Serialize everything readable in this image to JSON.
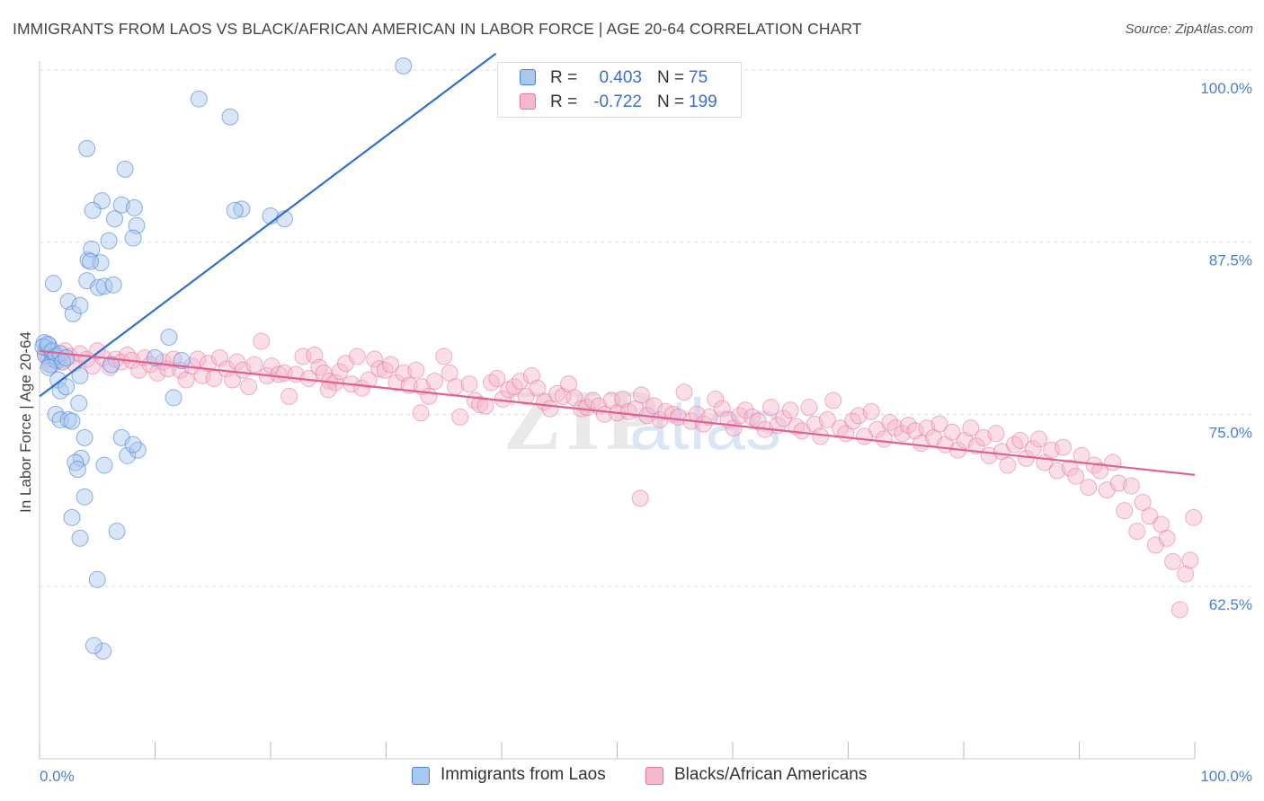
{
  "header": {
    "title": "IMMIGRANTS FROM LAOS VS BLACK/AFRICAN AMERICAN IN LABOR FORCE | AGE 20-64 CORRELATION CHART",
    "source": "Source: ZipAtlas.com"
  },
  "legend_top": {
    "rows": [
      {
        "r_label": "R =",
        "r_value": "0.403",
        "n_label": "N =",
        "n_value": "75"
      },
      {
        "r_label": "R =",
        "r_value": "-0.722",
        "n_label": "N =",
        "n_value": "199"
      }
    ]
  },
  "legend_bottom": {
    "items": [
      {
        "label": "Immigrants from Laos"
      },
      {
        "label": "Blacks/African Americans"
      }
    ]
  },
  "colors": {
    "series_blue": "#4a7fd4",
    "series_blue_fill": "#a9c8f0",
    "series_pink": "#e8739c",
    "series_pink_fill": "#f5b9cf",
    "grid": "#dddddd",
    "axis_text": "#4a7fd4"
  },
  "chart_data": {
    "type": "scatter",
    "title": "IMMIGRANTS FROM LAOS VS BLACK/AFRICAN AMERICAN IN LABOR FORCE | AGE 20-64 CORRELATION CHART",
    "xlabel": "",
    "ylabel": "In Labor Force | Age 20-64",
    "xlim": [
      0,
      100
    ],
    "ylim": [
      50,
      102
    ],
    "x_tick_labels": [
      "0.0%",
      "100.0%"
    ],
    "y_ticks": [
      62.5,
      75.0,
      87.5,
      100.0
    ],
    "y_tick_labels": [
      "62.5%",
      "75.0%",
      "87.5%",
      "100.0%"
    ],
    "grid": true,
    "legend_position": "bottom",
    "series": [
      {
        "name": "Immigrants from Laos",
        "color": "#4a7fd4",
        "R": 0.403,
        "N": 75,
        "trend": {
          "x": [
            0,
            39.5
          ],
          "y": [
            76.3,
            101.2
          ]
        },
        "points": [
          [
            0.4,
            80.2
          ],
          [
            0.6,
            79.8
          ],
          [
            0.8,
            80.0
          ],
          [
            1.0,
            79.5
          ],
          [
            0.5,
            79.3
          ],
          [
            1.2,
            79.0
          ],
          [
            0.9,
            78.6
          ],
          [
            1.5,
            78.9
          ],
          [
            0.3,
            79.9
          ],
          [
            0.7,
            80.1
          ],
          [
            1.1,
            79.6
          ],
          [
            1.4,
            79.2
          ],
          [
            1.8,
            79.4
          ],
          [
            2.0,
            78.8
          ],
          [
            0.8,
            78.4
          ],
          [
            2.3,
            79.1
          ],
          [
            1.6,
            77.5
          ],
          [
            1.8,
            76.7
          ],
          [
            2.3,
            77.0
          ],
          [
            3.5,
            77.8
          ],
          [
            1.4,
            75.0
          ],
          [
            1.8,
            74.6
          ],
          [
            2.5,
            74.6
          ],
          [
            2.8,
            74.5
          ],
          [
            3.4,
            75.8
          ],
          [
            3.9,
            73.3
          ],
          [
            3.6,
            71.8
          ],
          [
            3.1,
            71.5
          ],
          [
            3.3,
            71.0
          ],
          [
            5.6,
            71.3
          ],
          [
            3.9,
            69.0
          ],
          [
            2.8,
            67.5
          ],
          [
            3.5,
            66.0
          ],
          [
            5.0,
            63.0
          ],
          [
            6.7,
            66.5
          ],
          [
            5.5,
            57.8
          ],
          [
            4.7,
            58.2
          ],
          [
            7.6,
            72.0
          ],
          [
            7.1,
            73.3
          ],
          [
            8.5,
            72.4
          ],
          [
            8.1,
            72.8
          ],
          [
            1.2,
            84.5
          ],
          [
            2.5,
            83.2
          ],
          [
            2.9,
            82.3
          ],
          [
            3.5,
            82.9
          ],
          [
            4.1,
            84.7
          ],
          [
            4.2,
            86.2
          ],
          [
            4.5,
            87.0
          ],
          [
            5.3,
            86.0
          ],
          [
            4.4,
            86.1
          ],
          [
            5.1,
            84.2
          ],
          [
            5.6,
            84.3
          ],
          [
            6.4,
            84.4
          ],
          [
            5.4,
            90.5
          ],
          [
            4.6,
            89.8
          ],
          [
            6.0,
            87.6
          ],
          [
            6.5,
            89.2
          ],
          [
            7.1,
            90.2
          ],
          [
            8.2,
            90.0
          ],
          [
            8.4,
            88.7
          ],
          [
            8.1,
            87.8
          ],
          [
            7.4,
            92.8
          ],
          [
            4.1,
            94.3
          ],
          [
            13.8,
            97.9
          ],
          [
            16.5,
            96.6
          ],
          [
            17.5,
            89.9
          ],
          [
            16.9,
            89.8
          ],
          [
            20.0,
            89.4
          ],
          [
            21.2,
            89.2
          ],
          [
            31.5,
            100.3
          ],
          [
            10.0,
            79.1
          ],
          [
            11.2,
            80.6
          ],
          [
            11.6,
            76.2
          ],
          [
            6.2,
            78.6
          ],
          [
            12.3,
            78.9
          ]
        ]
      },
      {
        "name": "Blacks/African Americans",
        "color": "#e8739c",
        "R": -0.722,
        "N": 199,
        "trend": {
          "x": [
            0,
            100
          ],
          "y": [
            79.6,
            70.6
          ]
        },
        "points": [
          [
            0.5,
            79.5
          ],
          [
            0.8,
            79.0
          ],
          [
            1.1,
            78.6
          ],
          [
            1.5,
            79.3
          ],
          [
            1.9,
            78.9
          ],
          [
            2.2,
            79.6
          ],
          [
            2.6,
            79.2
          ],
          [
            3.0,
            78.7
          ],
          [
            3.5,
            79.4
          ],
          [
            4.1,
            79.0
          ],
          [
            4.6,
            78.5
          ],
          [
            5.0,
            79.6
          ],
          [
            5.5,
            79.1
          ],
          [
            6.1,
            78.4
          ],
          [
            6.6,
            79.0
          ],
          [
            7.1,
            78.8
          ],
          [
            7.6,
            79.3
          ],
          [
            8.0,
            78.9
          ],
          [
            8.6,
            78.2
          ],
          [
            9.1,
            79.1
          ],
          [
            9.6,
            78.6
          ],
          [
            10.2,
            78.0
          ],
          [
            10.7,
            78.8
          ],
          [
            11.1,
            78.3
          ],
          [
            11.6,
            79.0
          ],
          [
            12.2,
            78.2
          ],
          [
            12.7,
            77.5
          ],
          [
            13.2,
            78.5
          ],
          [
            13.7,
            79.0
          ],
          [
            14.1,
            77.8
          ],
          [
            14.6,
            78.7
          ],
          [
            15.1,
            77.6
          ],
          [
            15.6,
            79.1
          ],
          [
            16.2,
            78.3
          ],
          [
            16.7,
            77.5
          ],
          [
            17.1,
            78.8
          ],
          [
            17.6,
            78.2
          ],
          [
            18.1,
            77.0
          ],
          [
            18.6,
            78.6
          ],
          [
            19.2,
            80.3
          ],
          [
            19.7,
            77.8
          ],
          [
            20.1,
            78.5
          ],
          [
            20.7,
            77.9
          ],
          [
            21.2,
            78.0
          ],
          [
            21.6,
            76.3
          ],
          [
            22.2,
            77.9
          ],
          [
            22.8,
            79.2
          ],
          [
            23.3,
            77.6
          ],
          [
            23.8,
            79.3
          ],
          [
            24.2,
            78.4
          ],
          [
            24.6,
            78.0
          ],
          [
            25.1,
            77.4
          ],
          [
            25.6,
            77.3
          ],
          [
            26.0,
            78.1
          ],
          [
            26.5,
            78.7
          ],
          [
            27.0,
            77.2
          ],
          [
            27.5,
            79.2
          ],
          [
            27.9,
            76.9
          ],
          [
            28.5,
            77.5
          ],
          [
            29.0,
            79.0
          ],
          [
            29.4,
            78.3
          ],
          [
            29.9,
            78.2
          ],
          [
            30.4,
            78.6
          ],
          [
            30.9,
            77.3
          ],
          [
            31.5,
            78.0
          ],
          [
            32.0,
            77.1
          ],
          [
            32.6,
            78.2
          ],
          [
            33.1,
            77.0
          ],
          [
            33.7,
            76.3
          ],
          [
            34.2,
            77.4
          ],
          [
            35.0,
            79.2
          ],
          [
            35.5,
            78.0
          ],
          [
            36.0,
            77.0
          ],
          [
            36.4,
            74.8
          ],
          [
            37.2,
            77.2
          ],
          [
            37.7,
            76.0
          ],
          [
            38.1,
            75.7
          ],
          [
            38.6,
            75.6
          ],
          [
            39.1,
            77.3
          ],
          [
            39.6,
            77.6
          ],
          [
            40.1,
            76.1
          ],
          [
            40.6,
            76.8
          ],
          [
            41.1,
            77.0
          ],
          [
            41.6,
            77.4
          ],
          [
            42.1,
            76.3
          ],
          [
            42.6,
            77.8
          ],
          [
            43.1,
            76.9
          ],
          [
            43.7,
            75.9
          ],
          [
            44.2,
            75.4
          ],
          [
            44.8,
            76.5
          ],
          [
            45.3,
            76.3
          ],
          [
            45.8,
            77.2
          ],
          [
            46.3,
            76.2
          ],
          [
            46.9,
            75.4
          ],
          [
            47.4,
            75.5
          ],
          [
            47.9,
            76.0
          ],
          [
            48.4,
            75.6
          ],
          [
            48.9,
            75.0
          ],
          [
            49.5,
            76.0
          ],
          [
            50.0,
            75.1
          ],
          [
            50.5,
            76.1
          ],
          [
            51.0,
            75.2
          ],
          [
            51.6,
            75.4
          ],
          [
            52.1,
            76.4
          ],
          [
            52.6,
            74.9
          ],
          [
            53.2,
            75.6
          ],
          [
            53.7,
            74.6
          ],
          [
            54.2,
            75.2
          ],
          [
            54.8,
            75.0
          ],
          [
            55.3,
            74.8
          ],
          [
            55.8,
            76.6
          ],
          [
            56.4,
            74.5
          ],
          [
            56.9,
            75.0
          ],
          [
            57.5,
            74.3
          ],
          [
            58.0,
            74.8
          ],
          [
            58.5,
            76.1
          ],
          [
            59.1,
            75.4
          ],
          [
            59.6,
            74.6
          ],
          [
            60.1,
            74.0
          ],
          [
            60.6,
            74.9
          ],
          [
            61.1,
            75.3
          ],
          [
            61.7,
            74.8
          ],
          [
            62.2,
            74.5
          ],
          [
            62.8,
            73.9
          ],
          [
            63.3,
            75.5
          ],
          [
            63.9,
            74.2
          ],
          [
            64.4,
            74.7
          ],
          [
            65.0,
            75.3
          ],
          [
            65.5,
            74.1
          ],
          [
            66.0,
            73.8
          ],
          [
            66.6,
            75.5
          ],
          [
            67.1,
            74.3
          ],
          [
            67.6,
            73.4
          ],
          [
            68.2,
            74.6
          ],
          [
            68.7,
            76.0
          ],
          [
            69.3,
            74.0
          ],
          [
            69.8,
            73.6
          ],
          [
            70.4,
            74.5
          ],
          [
            70.9,
            74.9
          ],
          [
            71.4,
            73.4
          ],
          [
            72.0,
            75.2
          ],
          [
            72.5,
            73.9
          ],
          [
            73.1,
            73.2
          ],
          [
            73.6,
            74.4
          ],
          [
            74.1,
            74.0
          ],
          [
            74.7,
            73.6
          ],
          [
            75.2,
            74.2
          ],
          [
            75.8,
            73.8
          ],
          [
            76.3,
            72.9
          ],
          [
            76.8,
            74.0
          ],
          [
            77.4,
            73.3
          ],
          [
            77.9,
            74.3
          ],
          [
            78.4,
            72.8
          ],
          [
            79.0,
            73.7
          ],
          [
            79.5,
            72.4
          ],
          [
            80.1,
            73.1
          ],
          [
            80.6,
            74.0
          ],
          [
            81.1,
            72.7
          ],
          [
            81.7,
            73.3
          ],
          [
            82.2,
            72.0
          ],
          [
            82.8,
            73.6
          ],
          [
            83.3,
            72.3
          ],
          [
            83.8,
            71.3
          ],
          [
            84.4,
            72.8
          ],
          [
            84.9,
            73.1
          ],
          [
            85.4,
            71.8
          ],
          [
            86.0,
            72.5
          ],
          [
            86.5,
            73.2
          ],
          [
            87.0,
            71.5
          ],
          [
            87.6,
            72.4
          ],
          [
            88.1,
            70.9
          ],
          [
            88.6,
            72.6
          ],
          [
            89.2,
            71.1
          ],
          [
            89.7,
            70.5
          ],
          [
            90.2,
            72.0
          ],
          [
            90.8,
            69.7
          ],
          [
            91.3,
            71.3
          ],
          [
            91.8,
            70.9
          ],
          [
            92.4,
            69.5
          ],
          [
            92.9,
            71.5
          ],
          [
            93.4,
            70.0
          ],
          [
            93.9,
            68.0
          ],
          [
            94.5,
            69.8
          ],
          [
            95.0,
            66.5
          ],
          [
            95.5,
            68.6
          ],
          [
            96.1,
            67.6
          ],
          [
            96.6,
            65.5
          ],
          [
            97.1,
            67.0
          ],
          [
            97.6,
            66.0
          ],
          [
            98.1,
            64.3
          ],
          [
            98.7,
            60.8
          ],
          [
            99.2,
            63.4
          ],
          [
            99.6,
            64.4
          ],
          [
            99.9,
            67.5
          ],
          [
            33.0,
            75.1
          ],
          [
            25.0,
            76.8
          ],
          [
            52.0,
            68.9
          ]
        ]
      }
    ]
  }
}
